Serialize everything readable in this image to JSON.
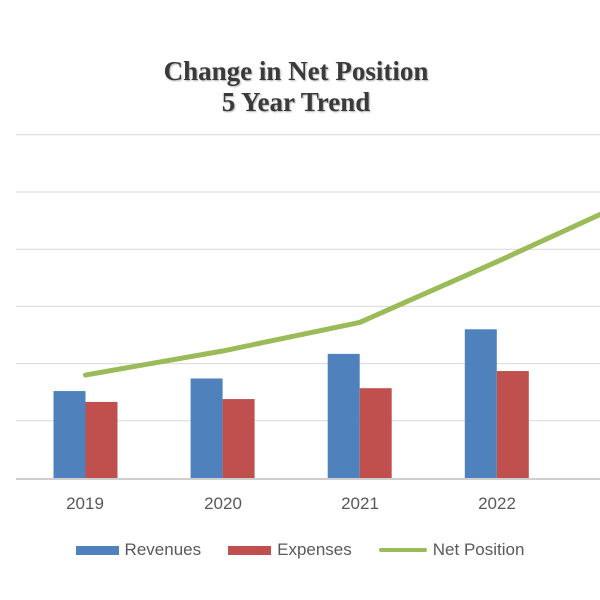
{
  "title": {
    "line1": "Change in Net Position",
    "line2": "5 Year Trend"
  },
  "legend": {
    "items": [
      {
        "label": "Revenues",
        "swatch": "bar",
        "color": "#4f81bd"
      },
      {
        "label": "Expenses",
        "swatch": "bar",
        "color": "#c0504d"
      },
      {
        "label": "Net Position",
        "swatch": "line",
        "color": "#9bbb59"
      }
    ]
  },
  "style": {
    "background": "#ffffff",
    "title_color": "#3a3a3a",
    "axis_label_color": "#595959",
    "gridline_color": "#d9d9d9",
    "axis_line_color": "#cfcfcf"
  },
  "chart_data": {
    "type": "combo",
    "title": "Change in Net Position — 5 Year Trend",
    "categories": [
      "2019",
      "2020",
      "2021",
      "2022"
    ],
    "series": [
      {
        "name": "Revenues",
        "kind": "bar",
        "color": "#4f81bd",
        "values": [
          1.52,
          1.74,
          2.17,
          2.6
        ]
      },
      {
        "name": "Expenses",
        "kind": "bar",
        "color": "#c0504d",
        "values": [
          1.33,
          1.38,
          1.57,
          1.87
        ]
      },
      {
        "name": "Net Position",
        "kind": "line",
        "color": "#9bbb59",
        "values": [
          1.8,
          2.22,
          2.72,
          3.78
        ],
        "continues_past_right_crop": true,
        "value_at_right_crop": 4.63
      }
    ],
    "xlabel": "",
    "ylabel": "",
    "y_axis": {
      "tick_labels_visible": false,
      "ylim": [
        0,
        6
      ],
      "gridline_interval": 1,
      "note": "No y-axis scale is shown in the image; values are estimated in gridline units (1 unit = one gridline spacing; 6 intervals between baseline and top gridline). The 5th year of the trend is cropped off the right edge."
    },
    "grid": true,
    "legend_position": "bottom"
  }
}
